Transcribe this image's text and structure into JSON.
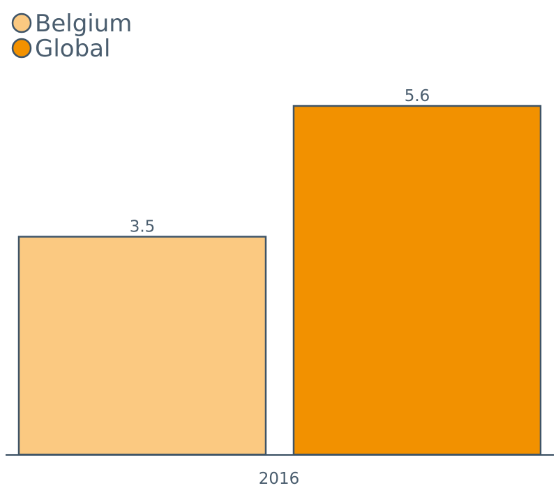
{
  "chart_data": {
    "type": "bar",
    "categories": [
      "2016"
    ],
    "series": [
      {
        "name": "Belgium",
        "values": [
          3.5
        ],
        "color": "#fbc981"
      },
      {
        "name": "Global",
        "values": [
          5.6
        ],
        "color": "#f29100"
      }
    ],
    "value_labels": [
      "3.5",
      "5.6"
    ],
    "title": "",
    "xlabel": "",
    "ylabel": "",
    "ylim": [
      0,
      5.6
    ],
    "grid": false,
    "legend_position": "top-left",
    "outline_color": "#3f5467"
  }
}
